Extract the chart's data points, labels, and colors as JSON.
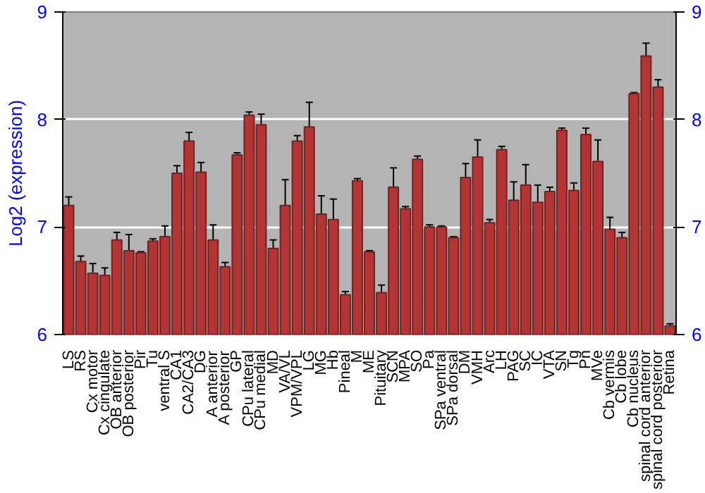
{
  "chart_data": {
    "type": "bar",
    "ylabel": "Log2 (expression)",
    "y2label": null,
    "categories": [
      "LS",
      "RS",
      "Cx motor",
      "Cx cingulate",
      "OB anterior",
      "OB posterior",
      "Pir",
      "Tu",
      "ventral S",
      "CA1",
      "CA2/CA3",
      "DG",
      "A anterior",
      "A posterior",
      "GP",
      "CPu lateral",
      "CPu medial",
      "MD",
      "VA/VL",
      "VPM/VPL",
      "LG",
      "MG",
      "Hb",
      "Pineal",
      "M",
      "ME",
      "Pituitary",
      "SCN",
      "MPA",
      "SO",
      "Pa",
      "SPa ventral",
      "SPa dorsal",
      "DM",
      "VMH",
      "Arc",
      "LH",
      "PAG",
      "SC",
      "IC",
      "VTA",
      "SN",
      "Tg",
      "Pn",
      "MVe",
      "Cb vermis",
      "Cb lobe",
      "Cb nucleus",
      "spinal cord anterior",
      "spinal cord posterior",
      "Retina"
    ],
    "values": [
      7.2,
      6.68,
      6.57,
      6.55,
      6.88,
      6.78,
      6.76,
      6.87,
      6.91,
      7.5,
      7.8,
      7.51,
      6.88,
      6.63,
      7.67,
      8.04,
      7.95,
      6.8,
      7.2,
      7.8,
      7.93,
      7.12,
      7.07,
      6.37,
      7.43,
      6.77,
      6.39,
      7.37,
      7.17,
      7.63,
      7.0,
      7.0,
      6.9,
      7.46,
      7.65,
      7.04,
      7.72,
      7.25,
      7.39,
      7.23,
      7.33,
      7.9,
      7.34,
      7.86,
      7.61,
      6.98,
      6.9,
      8.24,
      8.59,
      8.3,
      6.08
    ],
    "errors": [
      0.08,
      0.05,
      0.09,
      0.07,
      0.07,
      0.15,
      0.01,
      0.02,
      0.1,
      0.07,
      0.08,
      0.09,
      0.14,
      0.04,
      0.02,
      0.03,
      0.1,
      0.08,
      0.24,
      0.05,
      0.23,
      0.17,
      0.19,
      0.03,
      0.02,
      0.01,
      0.07,
      0.18,
      0.02,
      0.03,
      0.02,
      0.01,
      0.01,
      0.13,
      0.16,
      0.03,
      0.03,
      0.17,
      0.19,
      0.16,
      0.04,
      0.02,
      0.07,
      0.06,
      0.2,
      0.11,
      0.05,
      0.01,
      0.12,
      0.07,
      0.02
    ],
    "color": "#b03535",
    "ylim": [
      6,
      9
    ],
    "yticks": [
      6,
      7,
      8,
      9
    ],
    "y2lim": [
      6,
      9
    ],
    "y2ticks": [
      6,
      7,
      8,
      9
    ],
    "grid": "y"
  }
}
